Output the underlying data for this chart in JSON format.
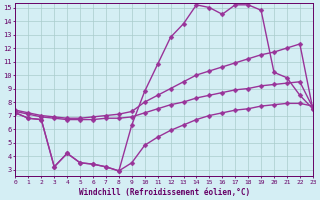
{
  "line1_x": [
    0,
    1,
    2,
    3,
    4,
    5,
    6,
    7,
    8,
    9,
    10,
    11,
    12,
    13,
    14,
    15,
    16,
    17,
    18,
    19,
    20,
    21,
    22,
    23
  ],
  "line1_y": [
    7.2,
    6.8,
    6.7,
    3.2,
    4.2,
    3.5,
    3.4,
    3.2,
    2.9,
    6.3,
    8.8,
    10.8,
    12.8,
    13.8,
    15.2,
    15.0,
    14.5,
    15.2,
    15.2,
    14.8,
    10.2,
    9.8,
    8.5,
    7.5
  ],
  "line2_x": [
    0,
    1,
    2,
    3,
    4,
    5,
    6,
    7,
    8,
    9,
    10,
    11,
    12,
    13,
    14,
    15,
    16,
    17,
    18,
    19,
    20,
    21,
    22,
    23
  ],
  "line2_y": [
    7.4,
    7.2,
    7.0,
    6.9,
    6.8,
    6.8,
    6.9,
    7.0,
    7.1,
    7.3,
    8.0,
    8.5,
    9.0,
    9.5,
    10.0,
    10.3,
    10.6,
    10.9,
    11.2,
    11.5,
    11.7,
    12.0,
    12.3,
    7.5
  ],
  "line3_x": [
    0,
    1,
    2,
    3,
    4,
    5,
    6,
    7,
    8,
    9,
    10,
    11,
    12,
    13,
    14,
    15,
    16,
    17,
    18,
    19,
    20,
    21,
    22,
    23
  ],
  "line3_y": [
    7.3,
    7.1,
    6.9,
    6.8,
    6.7,
    6.7,
    6.7,
    6.8,
    6.8,
    6.9,
    7.2,
    7.5,
    7.8,
    8.0,
    8.3,
    8.5,
    8.7,
    8.9,
    9.0,
    9.2,
    9.3,
    9.4,
    9.5,
    7.6
  ],
  "line4_x": [
    0,
    1,
    2,
    3,
    4,
    5,
    6,
    7,
    8,
    9,
    10,
    11,
    12,
    13,
    14,
    15,
    16,
    17,
    18,
    19,
    20,
    21,
    22,
    23
  ],
  "line4_y": [
    7.2,
    6.8,
    6.7,
    3.2,
    4.2,
    3.5,
    3.4,
    3.2,
    2.9,
    3.5,
    4.8,
    5.4,
    5.9,
    6.3,
    6.7,
    7.0,
    7.2,
    7.4,
    7.5,
    7.7,
    7.8,
    7.9,
    7.9,
    7.7
  ],
  "color": "#993399",
  "bg_color": "#d4eef4",
  "grid_color": "#aacccc",
  "axis_color": "#660066",
  "xlabel": "Windchill (Refroidissement éolien,°C)",
  "xlim": [
    0,
    23
  ],
  "ylim": [
    2.5,
    15.3
  ],
  "xticks": [
    0,
    1,
    2,
    3,
    4,
    5,
    6,
    7,
    8,
    9,
    10,
    11,
    12,
    13,
    14,
    15,
    16,
    17,
    18,
    19,
    20,
    21,
    22,
    23
  ],
  "yticks": [
    3,
    4,
    5,
    6,
    7,
    8,
    9,
    10,
    11,
    12,
    13,
    14,
    15
  ],
  "marker": "D",
  "markersize": 2.5,
  "linewidth": 1.0
}
